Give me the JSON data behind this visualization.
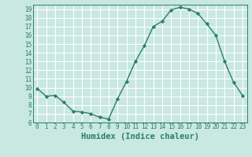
{
  "x": [
    0,
    1,
    2,
    3,
    4,
    5,
    6,
    7,
    8,
    9,
    10,
    11,
    12,
    13,
    14,
    15,
    16,
    17,
    18,
    19,
    20,
    21,
    22,
    23
  ],
  "y": [
    9.9,
    9.0,
    9.1,
    8.3,
    7.3,
    7.2,
    7.0,
    6.6,
    6.4,
    8.7,
    10.7,
    13.0,
    14.8,
    17.0,
    17.6,
    18.9,
    19.2,
    19.0,
    18.5,
    17.3,
    16.0,
    13.0,
    10.6,
    9.1
  ],
  "line_color": "#2d7d6e",
  "marker": "D",
  "marker_size": 2.2,
  "bg_color": "#c8e8e0",
  "grid_color": "#ffffff",
  "xlabel": "Humidex (Indice chaleur)",
  "xlim": [
    -0.5,
    23.5
  ],
  "ylim": [
    6,
    19.5
  ],
  "yticks": [
    6,
    7,
    8,
    9,
    10,
    11,
    12,
    13,
    14,
    15,
    16,
    17,
    18,
    19
  ],
  "xticks": [
    0,
    1,
    2,
    3,
    4,
    5,
    6,
    7,
    8,
    9,
    10,
    11,
    12,
    13,
    14,
    15,
    16,
    17,
    18,
    19,
    20,
    21,
    22,
    23
  ],
  "tick_label_fontsize": 5.5,
  "xlabel_fontsize": 7.5,
  "line_width": 1.0
}
